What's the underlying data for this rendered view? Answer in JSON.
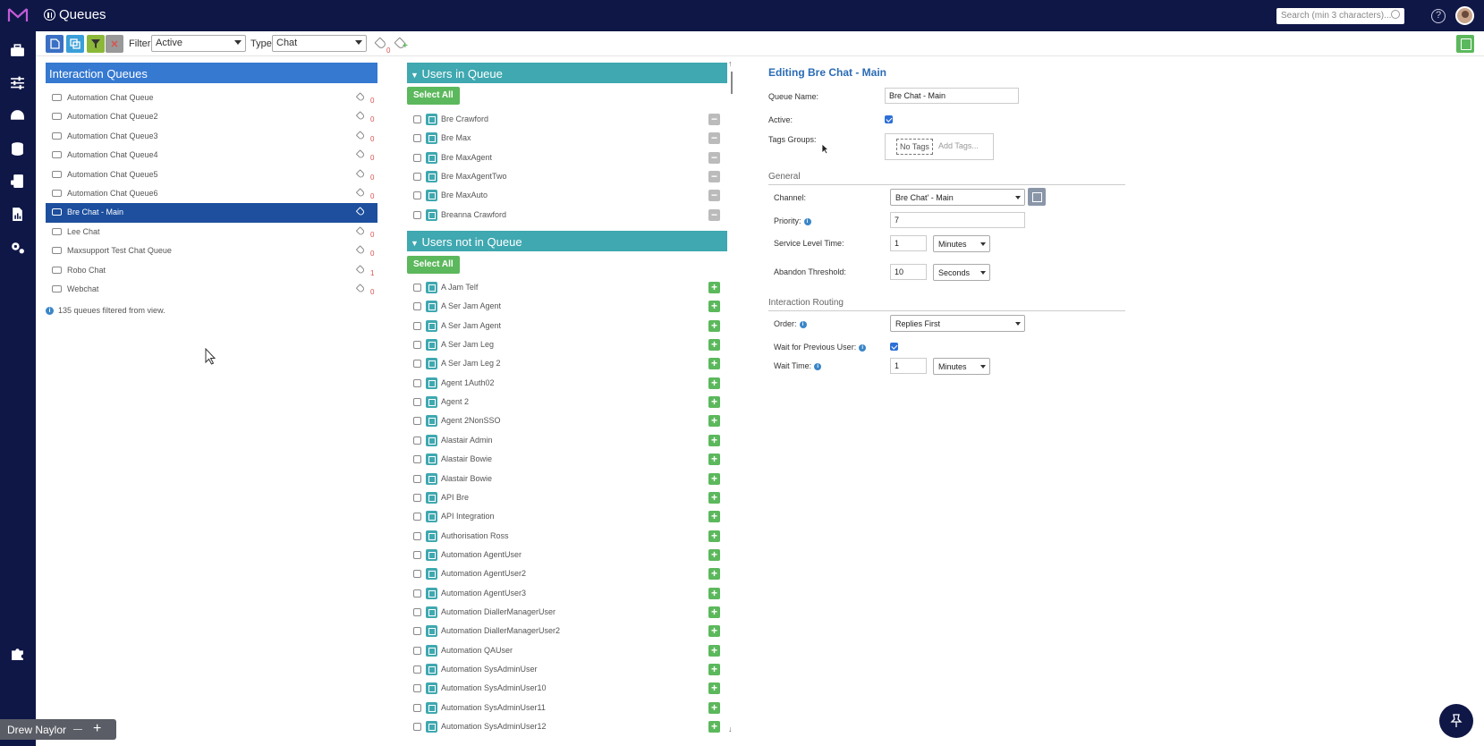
{
  "app": {
    "title": "Queues",
    "search_placeholder": "Search (min 3 characters)..."
  },
  "toolbar": {
    "filter_label": "Filter:",
    "filter_value": "Active",
    "type_label": "Type:",
    "type_value": "Chat",
    "tag_count": "0"
  },
  "queues": {
    "header": "Interaction Queues",
    "items": [
      {
        "name": "Automation Chat Queue",
        "count": "0"
      },
      {
        "name": "Automation Chat Queue2",
        "count": "0"
      },
      {
        "name": "Automation Chat Queue3",
        "count": "0"
      },
      {
        "name": "Automation Chat Queue4",
        "count": "0"
      },
      {
        "name": "Automation Chat Queue5",
        "count": "0"
      },
      {
        "name": "Automation Chat Queue6",
        "count": "0"
      },
      {
        "name": "Bre Chat - Main",
        "count": ""
      },
      {
        "name": "Lee Chat",
        "count": "0"
      },
      {
        "name": "Maxsupport Test Chat Queue",
        "count": "0"
      },
      {
        "name": "Robo Chat",
        "count": "1"
      },
      {
        "name": "Webchat",
        "count": "0"
      }
    ],
    "filtered_note": "135 queues filtered from view."
  },
  "users_in_queue": {
    "header": "Users in Queue",
    "select_all": "Select All",
    "users": [
      "Bre Crawford",
      "Bre Max",
      "Bre MaxAgent",
      "Bre MaxAgentTwo",
      "Bre MaxAuto",
      "Breanna Crawford"
    ]
  },
  "users_not_in_queue": {
    "header": "Users not in Queue",
    "select_all": "Select All",
    "users": [
      "A Jam Telf",
      "A Ser Jam Agent",
      "A Ser Jam Agent",
      "A Ser Jam Leg",
      "A Ser Jam Leg 2",
      "Agent 1Auth02",
      "Agent 2",
      "Agent 2NonSSO",
      "Alastair Admin",
      "Alastair Bowie",
      "Alastair Bowie",
      "API Bre",
      "API Integration",
      "Authorisation Ross",
      "Automation AgentUser",
      "Automation AgentUser2",
      "Automation AgentUser3",
      "Automation DiallerManagerUser",
      "Automation DiallerManagerUser2",
      "Automation QAUser",
      "Automation SysAdminUser",
      "Automation SysAdminUser10",
      "Automation SysAdminUser11",
      "Automation SysAdminUser12"
    ]
  },
  "editor": {
    "title": "Editing Bre Chat - Main",
    "queue_name_label": "Queue Name:",
    "queue_name_value": "Bre Chat - Main",
    "active_label": "Active:",
    "tags_groups_label": "Tags Groups:",
    "no_tags": "No Tags",
    "add_tags_placeholder": "Add Tags...",
    "general_header": "General",
    "channel_label": "Channel:",
    "channel_value": "Bre Chat' - Main",
    "priority_label": "Priority:",
    "priority_value": "7",
    "service_level_label": "Service Level Time:",
    "service_level_value": "1",
    "service_level_unit": "Minutes",
    "abandon_label": "Abandon Threshold:",
    "abandon_value": "10",
    "abandon_unit": "Seconds",
    "routing_header": "Interaction Routing",
    "order_label": "Order:",
    "order_value": "Replies First",
    "wait_prev_label": "Wait for Previous User:",
    "wait_time_label": "Wait Time:",
    "wait_time_value": "1",
    "wait_time_unit": "Minutes"
  },
  "footer": {
    "user_name": "Drew Naylor",
    "plus": "+"
  },
  "colors": {
    "nav_bg": "#0f1747",
    "queues_header": "#3579d1",
    "users_header": "#3fa8b0",
    "selected_row": "#1d4f9e",
    "green": "#5cb85c"
  }
}
